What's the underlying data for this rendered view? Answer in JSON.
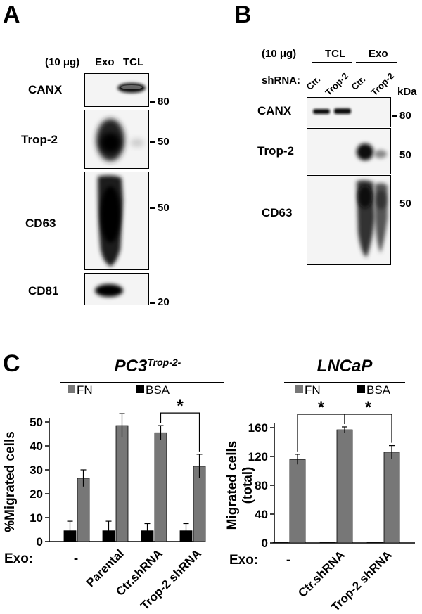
{
  "panel_a": {
    "letter": "A",
    "amount": "(10 μg)",
    "lane_exo": "Exo",
    "lane_tcl": "TCL",
    "rows": [
      {
        "label": "CANX",
        "mw": "80"
      },
      {
        "label": "Trop-2",
        "mw": "50"
      },
      {
        "label": "CD63",
        "mw": "50"
      },
      {
        "label": "CD81",
        "mw": "20"
      }
    ]
  },
  "panel_b": {
    "letter": "B",
    "amount": "(10 μg)",
    "group_tcl": "TCL",
    "group_exo": "Exo",
    "shrna_label": "shRNA:",
    "lanes": [
      "Ctr.",
      "Trop-2",
      "Ctr.",
      "Trop-2"
    ],
    "kda": "kDa",
    "rows": [
      {
        "label": "CANX",
        "mw": "80"
      },
      {
        "label": "Trop-2",
        "mw": "50"
      },
      {
        "label": "CD63",
        "mw": "50"
      }
    ]
  },
  "panel_c": {
    "letter": "C"
  },
  "chart_data": [
    {
      "type": "bar",
      "title": "PC3",
      "title_superscript": "Trop-2-",
      "legend": [
        "FN",
        "BSA"
      ],
      "ylabel": "%Migrated cells",
      "xlabel": "Exo:",
      "ylim": [
        0,
        50
      ],
      "yticks": [
        "0",
        "10",
        "20",
        "30",
        "40",
        "50"
      ],
      "categories": [
        "-",
        "Parental",
        "Ctr.shRNA",
        "Trop-2 shRNA"
      ],
      "series": [
        {
          "name": "BSA",
          "values": [
            4.5,
            4.5,
            4.5,
            4.5
          ],
          "errors": [
            4,
            4,
            3,
            3
          ],
          "color": "#000000"
        },
        {
          "name": "FN",
          "values": [
            26.5,
            48.5,
            45.5,
            31.5
          ],
          "errors": [
            3.5,
            5,
            3,
            5
          ],
          "color": "#777777"
        }
      ],
      "significance": [
        {
          "between": [
            2,
            3
          ],
          "label": "*"
        }
      ]
    },
    {
      "type": "bar",
      "title": "LNCaP",
      "legend": [
        "FN",
        "BSA"
      ],
      "ylabel": "Migrated cells (total)",
      "xlabel": "Exo:",
      "ylim": [
        0,
        160
      ],
      "yticks": [
        "0",
        "40",
        "80",
        "120",
        "160"
      ],
      "categories": [
        "-",
        "Ctr.shRNA",
        "Trop-2 shRNA"
      ],
      "series": [
        {
          "name": "BSA",
          "values": [
            0.5,
            0.5,
            0.5
          ],
          "errors": [
            0,
            0,
            0
          ],
          "color": "#000000"
        },
        {
          "name": "FN",
          "values": [
            116,
            157,
            126
          ],
          "errors": [
            7,
            4,
            9
          ],
          "color": "#777777"
        }
      ],
      "significance": [
        {
          "between": [
            0,
            1
          ],
          "label": "*"
        },
        {
          "between": [
            1,
            2
          ],
          "label": "*"
        }
      ]
    }
  ]
}
